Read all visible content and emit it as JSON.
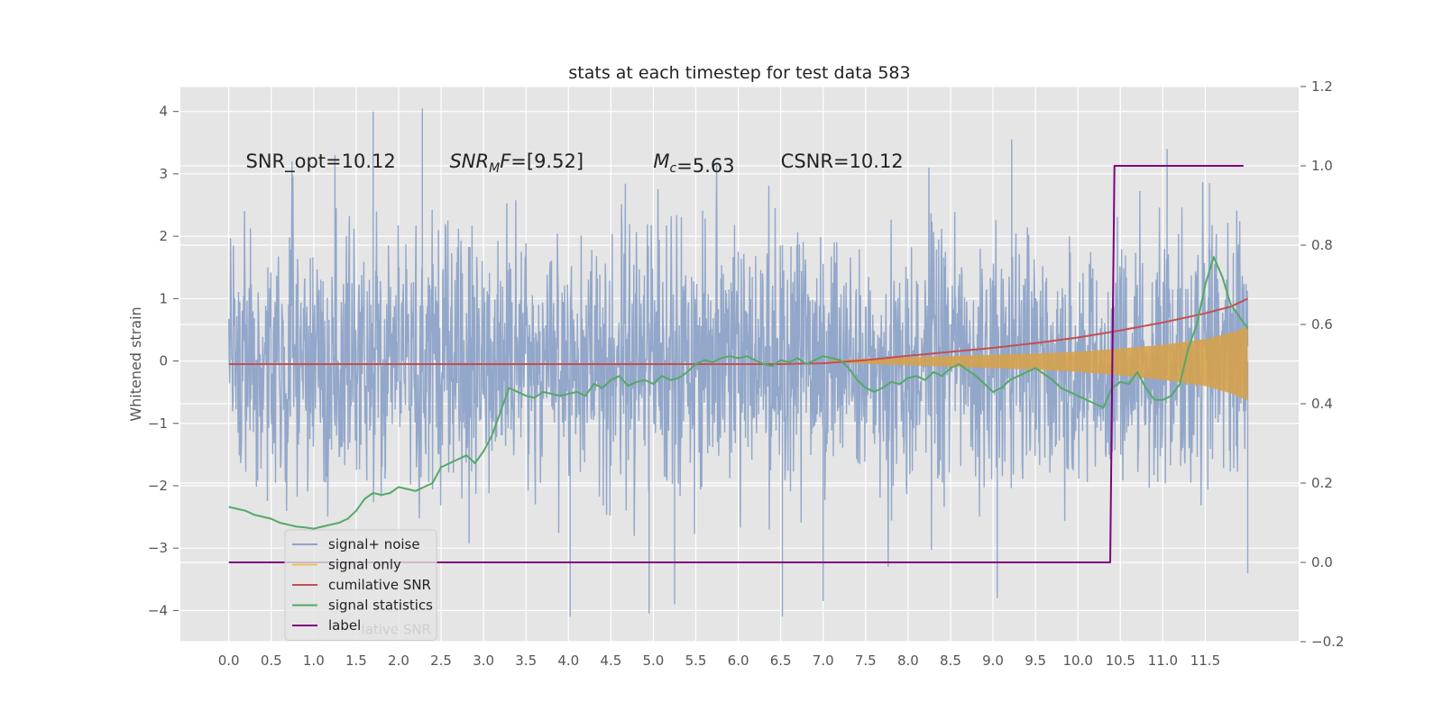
{
  "chart_data": {
    "type": "line",
    "title": "stats at each timestep for test data 583",
    "ylabel": "Whitened strain",
    "y2label": "",
    "xlim": [
      -0.57,
      12.6
    ],
    "ylim": [
      -4.5,
      4.4
    ],
    "y2lim": [
      -0.2,
      1.2
    ],
    "grid": true,
    "legend_placement": "lower-left",
    "x_ticks": [
      {
        "value": 0.0,
        "label": "0.0"
      },
      {
        "value": 0.5,
        "label": "0.5"
      },
      {
        "value": 1.0,
        "label": "1.0"
      },
      {
        "value": 1.5,
        "label": "1.5"
      },
      {
        "value": 2.0,
        "label": "2.0"
      },
      {
        "value": 2.5,
        "label": "2.5"
      },
      {
        "value": 3.0,
        "label": "3.0"
      },
      {
        "value": 3.5,
        "label": "3.5"
      },
      {
        "value": 4.0,
        "label": "4.0"
      },
      {
        "value": 4.5,
        "label": "4.5"
      },
      {
        "value": 5.0,
        "label": "5.0"
      },
      {
        "value": 5.5,
        "label": "5.5"
      },
      {
        "value": 6.0,
        "label": "6.0"
      },
      {
        "value": 6.5,
        "label": "6.5"
      },
      {
        "value": 7.0,
        "label": "7.0"
      },
      {
        "value": 7.5,
        "label": "7.5"
      },
      {
        "value": 8.0,
        "label": "8.0"
      },
      {
        "value": 8.5,
        "label": "8.5"
      },
      {
        "value": 9.0,
        "label": "9.0"
      },
      {
        "value": 9.5,
        "label": "9.5"
      },
      {
        "value": 10.0,
        "label": "10.0"
      },
      {
        "value": 10.5,
        "label": "10.5"
      },
      {
        "value": 11.0,
        "label": "11.0"
      },
      {
        "value": 11.5,
        "label": "11.5"
      }
    ],
    "y_ticks": [
      {
        "value": 4,
        "label": "4"
      },
      {
        "value": 3,
        "label": "3"
      },
      {
        "value": 2,
        "label": "2"
      },
      {
        "value": 1,
        "label": "1"
      },
      {
        "value": 0,
        "label": "0"
      },
      {
        "value": -1,
        "label": "−1"
      },
      {
        "value": -2,
        "label": "−2"
      },
      {
        "value": -3,
        "label": "−3"
      },
      {
        "value": -4,
        "label": "−4"
      }
    ],
    "y2_ticks": [
      {
        "value": 1.2,
        "label": "1.2"
      },
      {
        "value": 1.0,
        "label": "1.0"
      },
      {
        "value": 0.8,
        "label": "0.8"
      },
      {
        "value": 0.6,
        "label": "0.6"
      },
      {
        "value": 0.4,
        "label": "0.4"
      },
      {
        "value": 0.2,
        "label": "0.2"
      },
      {
        "value": 0.0,
        "label": "0.0"
      },
      {
        "value": -0.2,
        "label": "−0.2"
      }
    ],
    "annotations": [
      {
        "text": "SNR_opt=10.12",
        "x": 0.2,
        "y": 3.2
      },
      {
        "text": "SNR_MF=[9.52]",
        "x": 2.6,
        "y": 3.2
      },
      {
        "text": "M_c=5.63",
        "x": 5.0,
        "y": 3.2
      },
      {
        "text": "CSNR=10.12",
        "x": 6.5,
        "y": 3.2
      }
    ],
    "legend_overlap_text": "cumilative SNR",
    "series": [
      {
        "name": "signal+ noise",
        "axis": "left",
        "color": "#8da3c8",
        "style": "noise",
        "x_range": [
          0.0,
          12.0
        ],
        "envelope": 2.2,
        "peaks": [
          {
            "x": 1.7,
            "y": 4.0
          },
          {
            "x": 2.28,
            "y": 4.05
          },
          {
            "x": 9.22,
            "y": 3.55
          },
          {
            "x": 11.05,
            "y": 3.4
          },
          {
            "x": 1.25,
            "y": 3.3
          },
          {
            "x": 4.95,
            "y": -4.05
          },
          {
            "x": 4.02,
            "y": -4.1
          },
          {
            "x": 6.52,
            "y": -4.1
          },
          {
            "x": 7.0,
            "y": -3.85
          },
          {
            "x": 9.05,
            "y": -3.8
          },
          {
            "x": 5.25,
            "y": -3.9
          },
          {
            "x": 6.0,
            "y": 1.75
          },
          {
            "x": 11.55,
            "y": 2.85
          },
          {
            "x": 12.0,
            "y": -3.4
          }
        ]
      },
      {
        "name": "signal only",
        "axis": "left",
        "color": "#d6a24e",
        "style": "chirp-envelope",
        "points": [
          [
            7.0,
            0.0
          ],
          [
            7.5,
            0.04
          ],
          [
            8.0,
            0.06
          ],
          [
            8.5,
            0.08
          ],
          [
            9.0,
            0.1
          ],
          [
            9.5,
            0.12
          ],
          [
            10.0,
            0.15
          ],
          [
            10.5,
            0.2
          ],
          [
            11.0,
            0.26
          ],
          [
            11.5,
            0.35
          ],
          [
            11.8,
            0.45
          ],
          [
            12.0,
            0.55
          ]
        ]
      },
      {
        "name": "cumilative SNR",
        "axis": "right",
        "color": "#c44e52",
        "style": "line",
        "points": [
          [
            0.0,
            0.5
          ],
          [
            6.5,
            0.5
          ],
          [
            7.0,
            0.502
          ],
          [
            7.5,
            0.51
          ],
          [
            8.0,
            0.521
          ],
          [
            8.5,
            0.531
          ],
          [
            9.0,
            0.541
          ],
          [
            9.5,
            0.553
          ],
          [
            10.0,
            0.567
          ],
          [
            10.5,
            0.585
          ],
          [
            11.0,
            0.605
          ],
          [
            11.5,
            0.628
          ],
          [
            11.8,
            0.645
          ],
          [
            12.0,
            0.665
          ]
        ]
      },
      {
        "name": "signal statistics",
        "axis": "right",
        "color": "#55a868",
        "style": "line",
        "points": [
          [
            0.0,
            0.14
          ],
          [
            0.1,
            0.135
          ],
          [
            0.2,
            0.13
          ],
          [
            0.3,
            0.12
          ],
          [
            0.4,
            0.115
          ],
          [
            0.5,
            0.11
          ],
          [
            0.6,
            0.1
          ],
          [
            0.7,
            0.095
          ],
          [
            0.8,
            0.09
          ],
          [
            0.9,
            0.088
          ],
          [
            1.0,
            0.085
          ],
          [
            1.1,
            0.09
          ],
          [
            1.2,
            0.095
          ],
          [
            1.3,
            0.1
          ],
          [
            1.4,
            0.11
          ],
          [
            1.5,
            0.13
          ],
          [
            1.6,
            0.16
          ],
          [
            1.7,
            0.175
          ],
          [
            1.8,
            0.17
          ],
          [
            1.9,
            0.175
          ],
          [
            2.0,
            0.19
          ],
          [
            2.1,
            0.185
          ],
          [
            2.2,
            0.18
          ],
          [
            2.3,
            0.19
          ],
          [
            2.4,
            0.2
          ],
          [
            2.5,
            0.24
          ],
          [
            2.6,
            0.25
          ],
          [
            2.7,
            0.26
          ],
          [
            2.8,
            0.27
          ],
          [
            2.9,
            0.25
          ],
          [
            3.0,
            0.28
          ],
          [
            3.1,
            0.32
          ],
          [
            3.2,
            0.38
          ],
          [
            3.3,
            0.44
          ],
          [
            3.4,
            0.43
          ],
          [
            3.5,
            0.42
          ],
          [
            3.6,
            0.415
          ],
          [
            3.7,
            0.43
          ],
          [
            3.8,
            0.425
          ],
          [
            3.9,
            0.42
          ],
          [
            4.0,
            0.425
          ],
          [
            4.1,
            0.43
          ],
          [
            4.2,
            0.42
          ],
          [
            4.3,
            0.45
          ],
          [
            4.4,
            0.44
          ],
          [
            4.5,
            0.46
          ],
          [
            4.6,
            0.47
          ],
          [
            4.7,
            0.445
          ],
          [
            4.8,
            0.455
          ],
          [
            4.9,
            0.46
          ],
          [
            5.0,
            0.45
          ],
          [
            5.1,
            0.47
          ],
          [
            5.2,
            0.46
          ],
          [
            5.3,
            0.465
          ],
          [
            5.4,
            0.48
          ],
          [
            5.5,
            0.5
          ],
          [
            5.6,
            0.51
          ],
          [
            5.7,
            0.505
          ],
          [
            5.8,
            0.515
          ],
          [
            5.9,
            0.52
          ],
          [
            6.0,
            0.515
          ],
          [
            6.1,
            0.52
          ],
          [
            6.2,
            0.51
          ],
          [
            6.3,
            0.5
          ],
          [
            6.4,
            0.495
          ],
          [
            6.5,
            0.51
          ],
          [
            6.6,
            0.505
          ],
          [
            6.7,
            0.515
          ],
          [
            6.8,
            0.5
          ],
          [
            6.9,
            0.51
          ],
          [
            7.0,
            0.52
          ],
          [
            7.1,
            0.515
          ],
          [
            7.2,
            0.51
          ],
          [
            7.3,
            0.49
          ],
          [
            7.4,
            0.46
          ],
          [
            7.5,
            0.44
          ],
          [
            7.6,
            0.43
          ],
          [
            7.7,
            0.44
          ],
          [
            7.8,
            0.455
          ],
          [
            7.9,
            0.45
          ],
          [
            8.0,
            0.465
          ],
          [
            8.1,
            0.47
          ],
          [
            8.2,
            0.46
          ],
          [
            8.3,
            0.48
          ],
          [
            8.4,
            0.47
          ],
          [
            8.5,
            0.49
          ],
          [
            8.6,
            0.5
          ],
          [
            8.7,
            0.485
          ],
          [
            8.8,
            0.47
          ],
          [
            8.9,
            0.45
          ],
          [
            9.0,
            0.43
          ],
          [
            9.1,
            0.44
          ],
          [
            9.2,
            0.46
          ],
          [
            9.3,
            0.47
          ],
          [
            9.4,
            0.48
          ],
          [
            9.5,
            0.49
          ],
          [
            9.6,
            0.475
          ],
          [
            9.7,
            0.46
          ],
          [
            9.8,
            0.44
          ],
          [
            9.9,
            0.43
          ],
          [
            10.0,
            0.42
          ],
          [
            10.1,
            0.41
          ],
          [
            10.2,
            0.4
          ],
          [
            10.3,
            0.39
          ],
          [
            10.4,
            0.44
          ],
          [
            10.5,
            0.455
          ],
          [
            10.6,
            0.45
          ],
          [
            10.7,
            0.48
          ],
          [
            10.8,
            0.44
          ],
          [
            10.9,
            0.41
          ],
          [
            11.0,
            0.41
          ],
          [
            11.1,
            0.42
          ],
          [
            11.2,
            0.45
          ],
          [
            11.3,
            0.54
          ],
          [
            11.4,
            0.6
          ],
          [
            11.5,
            0.7
          ],
          [
            11.6,
            0.77
          ],
          [
            11.7,
            0.72
          ],
          [
            11.8,
            0.65
          ],
          [
            11.9,
            0.62
          ],
          [
            12.0,
            0.59
          ]
        ]
      },
      {
        "name": "label",
        "axis": "right",
        "color": "#800080",
        "style": "line",
        "points": [
          [
            0.0,
            0.0
          ],
          [
            10.38,
            0.0
          ],
          [
            10.43,
            1.0
          ],
          [
            11.95,
            1.0
          ]
        ]
      }
    ]
  }
}
